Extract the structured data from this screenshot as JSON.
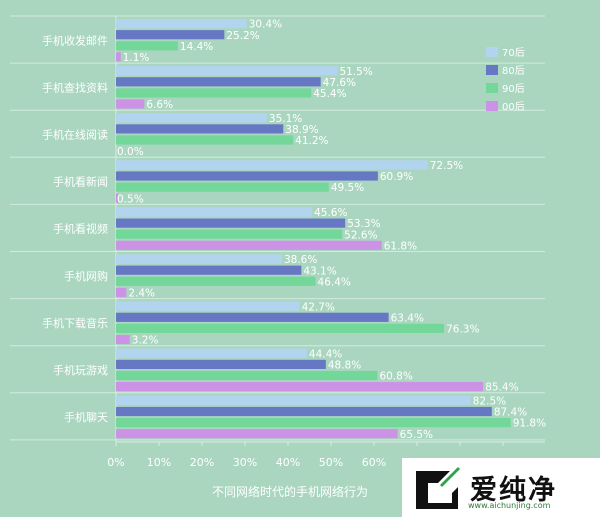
{
  "chart_data": {
    "type": "bar",
    "orientation": "horizontal",
    "title": "不同网络时代的手机网络行为",
    "categories": [
      "手机收发邮件",
      "手机查找资料",
      "手机在线阅读",
      "手机看新闻",
      "手机看视频",
      "手机网购",
      "手机下载音乐",
      "手机玩游戏",
      "手机聊天"
    ],
    "series": [
      {
        "name": "70后",
        "color": "#b3d4ee",
        "values": [
          30.4,
          51.5,
          35.1,
          72.5,
          45.6,
          38.6,
          42.7,
          44.4,
          82.5
        ],
        "labels": [
          "30.4%",
          "51.5%",
          "35.1%",
          "72.5%",
          "45.6%",
          "38.6%",
          "42.7%",
          "44.4%",
          "82.5%"
        ]
      },
      {
        "name": "80后",
        "color": "#6678c4",
        "values": [
          25.2,
          47.6,
          38.9,
          60.9,
          53.3,
          43.1,
          63.4,
          48.8,
          87.4
        ],
        "labels": [
          "25.2%",
          "47.6%",
          "38.9%",
          "60.9%",
          "53.3%",
          "43.1%",
          "63.4%",
          "48.8%",
          "87.4%"
        ]
      },
      {
        "name": "90后",
        "color": "#74d79a",
        "values": [
          14.4,
          45.4,
          41.2,
          49.5,
          52.6,
          46.4,
          76.3,
          60.8,
          91.8
        ],
        "labels": [
          "14.4%",
          "45.4%",
          "41.2%",
          "49.5%",
          "52.6%",
          "46.4%",
          "76.3%",
          "60.8%",
          "91.8%"
        ]
      },
      {
        "name": "00后",
        "color": "#cc92e6",
        "values": [
          1.1,
          6.6,
          0.0,
          0.5,
          61.8,
          2.4,
          3.2,
          85.4,
          65.5
        ],
        "labels": [
          "1.1%",
          "6.6%",
          "0.0%",
          "0.5%",
          "61.8%",
          "2.4%",
          "3.2%",
          "85.4%",
          "65.5%"
        ]
      }
    ],
    "xticks": [
      "0%",
      "10%",
      "20%",
      "30%",
      "40%",
      "50%",
      "60%",
      "70%",
      "80%",
      "90%"
    ],
    "xlim": [
      0,
      95
    ],
    "legend_position": "top-right",
    "grid": false
  },
  "watermark": {
    "text": "爱纯净",
    "url": "www.aichunjing.com"
  }
}
